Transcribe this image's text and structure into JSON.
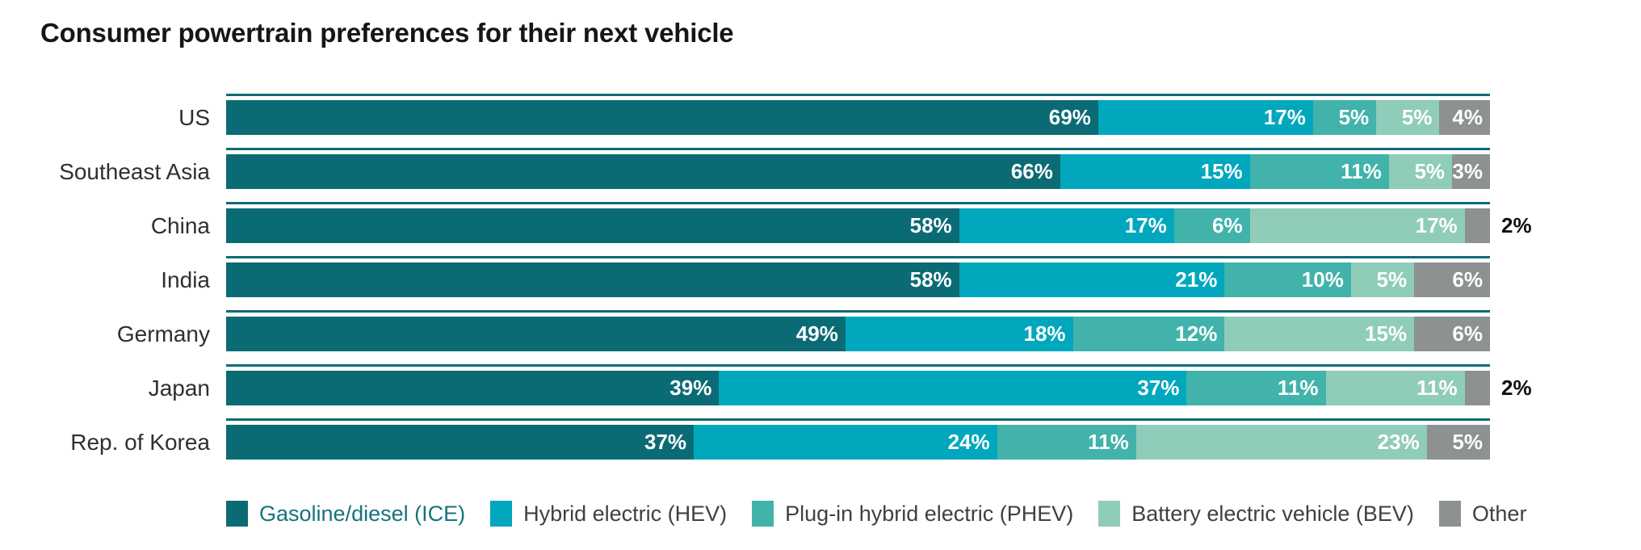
{
  "title": "Consumer powertrain preferences for their next vehicle",
  "colors": {
    "title_text": "#161616",
    "category_text": "#2d3032",
    "value_text_inside": "#ffffff",
    "value_text_outside": "#101010",
    "row_rule": "#0d6b75",
    "legend_text": "#3c4145"
  },
  "chart_data": {
    "type": "bar",
    "variant": "horizontal-stacked",
    "title": "Consumer powertrain preferences for their next vehicle",
    "unit": "%",
    "axis_range": [
      0,
      100
    ],
    "grid": false,
    "legend_position": "bottom",
    "value_label_format": "{value}%",
    "outside_label_threshold": 2,
    "categories": [
      "US",
      "Southeast Asia",
      "China",
      "India",
      "Germany",
      "Japan",
      "Rep. of Korea"
    ],
    "series": [
      {
        "name": "Gasoline/diesel (ICE)",
        "slug": "ice",
        "color": "#0b6b75",
        "values": [
          69,
          66,
          58,
          58,
          49,
          39,
          37
        ]
      },
      {
        "name": "Hybrid electric (HEV)",
        "slug": "hev",
        "color": "#00a7bd",
        "values": [
          17,
          15,
          17,
          21,
          18,
          37,
          24
        ]
      },
      {
        "name": "Plug-in hybrid electric (PHEV)",
        "slug": "phev",
        "color": "#41b3aa",
        "values": [
          5,
          11,
          6,
          10,
          12,
          11,
          11
        ]
      },
      {
        "name": "Battery electric vehicle (BEV)",
        "slug": "bev",
        "color": "#8fccba",
        "values": [
          5,
          5,
          17,
          5,
          15,
          11,
          23
        ]
      },
      {
        "name": "Other",
        "slug": "other",
        "color": "#8e9192",
        "values": [
          4,
          3,
          2,
          6,
          6,
          2,
          5
        ]
      }
    ]
  },
  "legend": {
    "items": [
      {
        "label": "Gasoline/diesel (ICE)",
        "swatch_color": "#0b6b75",
        "text_color": "#17737e"
      },
      {
        "label": "Hybrid electric (HEV)",
        "swatch_color": "#00a7bd",
        "text_color": "#3c4145"
      },
      {
        "label": "Plug-in hybrid electric (PHEV)",
        "swatch_color": "#41b3aa",
        "text_color": "#3c4145"
      },
      {
        "label": "Battery electric vehicle (BEV)",
        "swatch_color": "#8fccba",
        "text_color": "#3c4145"
      },
      {
        "label": "Other",
        "swatch_color": "#8e9192",
        "text_color": "#3c4145"
      }
    ]
  }
}
